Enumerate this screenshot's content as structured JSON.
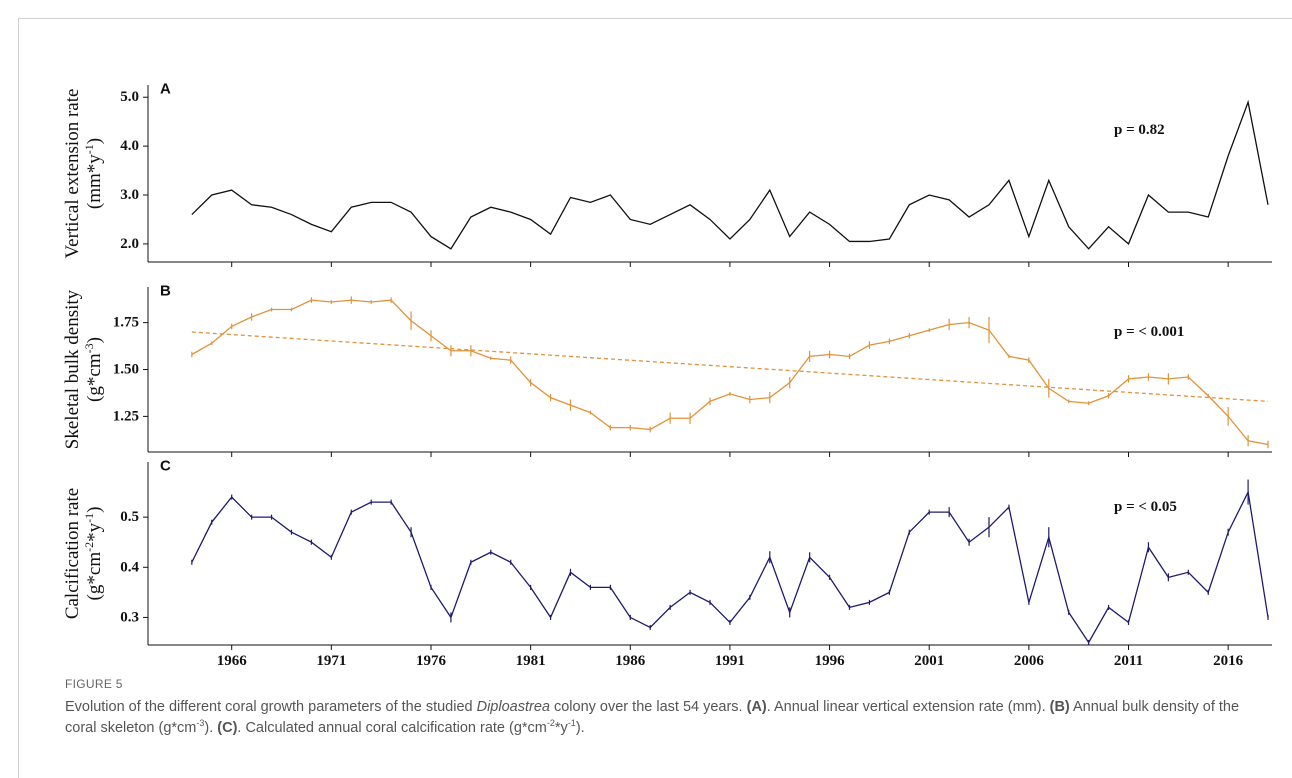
{
  "figure": {
    "label": "FIGURE 5",
    "caption": [
      {
        "text": "Evolution of the different coral growth parameters of the studied "
      },
      {
        "text": "Diploastrea",
        "style": "italic"
      },
      {
        "text": " colony over the last 54 years. "
      },
      {
        "text": "(A)",
        "style": "bold"
      },
      {
        "text": ". Annual linear vertical extension rate (mm). "
      },
      {
        "text": "(B)",
        "style": "bold"
      },
      {
        "text": " Annual bulk density of the coral skeleton (g*cm"
      },
      {
        "text": "-3",
        "style": "sup"
      },
      {
        "text": "). "
      },
      {
        "text": "(C)",
        "style": "bold"
      },
      {
        "text": ". Calculated annual coral calcification rate (g*cm"
      },
      {
        "text": "-2",
        "style": "sup"
      },
      {
        "text": "*y"
      },
      {
        "text": "-1",
        "style": "sup"
      },
      {
        "text": ")."
      }
    ]
  },
  "chart_data": [
    {
      "type": "line",
      "panel": "A",
      "annotation": "p = 0.82",
      "color": "#111111",
      "ylabel": "Vertical extension rate",
      "ylabel_unit": [
        {
          "text": "(mm*y"
        },
        {
          "text": "-1",
          "style": "sup"
        },
        {
          "text": ")"
        }
      ],
      "x": [
        1964,
        1965,
        1966,
        1967,
        1968,
        1969,
        1970,
        1971,
        1972,
        1973,
        1974,
        1975,
        1976,
        1977,
        1978,
        1979,
        1980,
        1981,
        1982,
        1983,
        1984,
        1985,
        1986,
        1987,
        1988,
        1989,
        1990,
        1991,
        1992,
        1993,
        1994,
        1995,
        1996,
        1997,
        1998,
        1999,
        2000,
        2001,
        2002,
        2003,
        2004,
        2005,
        2006,
        2007,
        2008,
        2009,
        2010,
        2011,
        2012,
        2013,
        2014,
        2015,
        2016,
        2017,
        2018
      ],
      "values": [
        2.6,
        3.0,
        3.1,
        2.8,
        2.75,
        2.6,
        2.4,
        2.25,
        2.75,
        2.85,
        2.85,
        2.65,
        2.15,
        1.9,
        2.55,
        2.75,
        2.65,
        2.5,
        2.2,
        2.95,
        2.85,
        3.0,
        2.5,
        2.4,
        2.6,
        2.8,
        2.5,
        2.1,
        2.5,
        3.1,
        2.15,
        2.65,
        2.4,
        2.05,
        2.05,
        2.1,
        2.8,
        3.0,
        2.9,
        2.55,
        2.8,
        3.3,
        2.15,
        3.3,
        2.35,
        1.9,
        2.35,
        2.0,
        3.0,
        2.65,
        2.65,
        2.55,
        3.8,
        4.9,
        2.8
      ],
      "xlim": [
        1961.8,
        2018.2
      ],
      "xticks": [
        1966,
        1971,
        1976,
        1981,
        1986,
        1991,
        1996,
        2001,
        2006,
        2011,
        2016
      ],
      "show_xtick_labels": false,
      "ylim": [
        1.63,
        5.25
      ],
      "yticks": [
        {
          "value": 2,
          "label": "2.0"
        },
        {
          "value": 3,
          "label": "3.0"
        },
        {
          "value": 4,
          "label": "4.0"
        },
        {
          "value": 5,
          "label": "5.0"
        }
      ]
    },
    {
      "type": "line",
      "panel": "B",
      "annotation": "p = < 0.001",
      "color": "#e0933a",
      "ylabel": "Skeletal bulk density",
      "ylabel_unit": [
        {
          "text": "(g*cm"
        },
        {
          "text": "-3",
          "style": "sup"
        },
        {
          "text": ")"
        }
      ],
      "x": [
        1964,
        1965,
        1966,
        1967,
        1968,
        1969,
        1970,
        1971,
        1972,
        1973,
        1974,
        1975,
        1976,
        1977,
        1978,
        1979,
        1980,
        1981,
        1982,
        1983,
        1984,
        1985,
        1986,
        1987,
        1988,
        1989,
        1990,
        1991,
        1992,
        1993,
        1994,
        1995,
        1996,
        1997,
        1998,
        1999,
        2000,
        2001,
        2002,
        2003,
        2004,
        2005,
        2006,
        2007,
        2008,
        2009,
        2010,
        2011,
        2012,
        2013,
        2014,
        2015,
        2016,
        2017,
        2018
      ],
      "values": [
        1.58,
        1.64,
        1.73,
        1.78,
        1.82,
        1.82,
        1.87,
        1.86,
        1.87,
        1.86,
        1.87,
        1.76,
        1.68,
        1.6,
        1.6,
        1.56,
        1.55,
        1.43,
        1.35,
        1.31,
        1.27,
        1.19,
        1.19,
        1.18,
        1.24,
        1.24,
        1.33,
        1.37,
        1.34,
        1.35,
        1.43,
        1.57,
        1.58,
        1.57,
        1.63,
        1.65,
        1.68,
        1.71,
        1.74,
        1.75,
        1.71,
        1.57,
        1.55,
        1.4,
        1.33,
        1.32,
        1.36,
        1.45,
        1.46,
        1.45,
        1.46,
        1.36,
        1.25,
        1.12,
        1.1
      ],
      "errors": [
        0.015,
        0.01,
        0.015,
        0.02,
        0.01,
        0.01,
        0.015,
        0.01,
        0.02,
        0.01,
        0.015,
        0.05,
        0.03,
        0.03,
        0.03,
        0.01,
        0.02,
        0.02,
        0.02,
        0.03,
        0.01,
        0.015,
        0.015,
        0.015,
        0.03,
        0.03,
        0.02,
        0.01,
        0.02,
        0.03,
        0.03,
        0.03,
        0.02,
        0.015,
        0.02,
        0.015,
        0.015,
        0.01,
        0.03,
        0.03,
        0.07,
        0.01,
        0.015,
        0.05,
        0.01,
        0.01,
        0.015,
        0.02,
        0.02,
        0.03,
        0.015,
        0.01,
        0.05,
        0.03,
        0.02
      ],
      "trend": {
        "x": [
          1964,
          2018
        ],
        "values": [
          1.7,
          1.33
        ],
        "style": "dashed"
      },
      "xlim": [
        1961.8,
        2018.2
      ],
      "xticks": [
        1966,
        1971,
        1976,
        1981,
        1986,
        1991,
        1996,
        2001,
        2006,
        2011,
        2016
      ],
      "show_xtick_labels": false,
      "ylim": [
        1.06,
        1.94
      ],
      "yticks": [
        1.25,
        {
          "value": 1.5,
          "label": "1.50"
        },
        1.75
      ]
    },
    {
      "type": "line",
      "panel": "C",
      "annotation": "p = < 0.05",
      "color": "#1f1a6b",
      "ylabel": "Calcification rate",
      "ylabel_unit": [
        {
          "text": "(g*cm"
        },
        {
          "text": "-2",
          "style": "sup"
        },
        {
          "text": "*y"
        },
        {
          "text": "-1",
          "style": "sup"
        },
        {
          "text": ")"
        }
      ],
      "x": [
        1964,
        1965,
        1966,
        1967,
        1968,
        1969,
        1970,
        1971,
        1972,
        1973,
        1974,
        1975,
        1976,
        1977,
        1978,
        1979,
        1980,
        1981,
        1982,
        1983,
        1984,
        1985,
        1986,
        1987,
        1988,
        1989,
        1990,
        1991,
        1992,
        1993,
        1994,
        1995,
        1996,
        1997,
        1998,
        1999,
        2000,
        2001,
        2002,
        2003,
        2004,
        2005,
        2006,
        2007,
        2008,
        2009,
        2010,
        2011,
        2012,
        2013,
        2014,
        2015,
        2016,
        2017,
        2018
      ],
      "values": [
        0.41,
        0.49,
        0.54,
        0.5,
        0.5,
        0.47,
        0.45,
        0.42,
        0.51,
        0.53,
        0.53,
        0.47,
        0.36,
        0.3,
        0.41,
        0.43,
        0.41,
        0.36,
        0.3,
        0.39,
        0.36,
        0.36,
        0.3,
        0.28,
        0.32,
        0.35,
        0.33,
        0.29,
        0.34,
        0.42,
        0.31,
        0.42,
        0.38,
        0.32,
        0.33,
        0.35,
        0.47,
        0.51,
        0.51,
        0.45,
        0.48,
        0.52,
        0.33,
        0.46,
        0.31,
        0.25,
        0.32,
        0.29,
        0.44,
        0.38,
        0.39,
        0.35,
        0.47,
        0.55,
        0.3
      ],
      "errors": [
        0.005,
        0.005,
        0.005,
        0.005,
        0.005,
        0.005,
        0.005,
        0.005,
        0.005,
        0.005,
        0.005,
        0.01,
        0.005,
        0.01,
        0.005,
        0.005,
        0.005,
        0.005,
        0.005,
        0.007,
        0.005,
        0.005,
        0.005,
        0.005,
        0.005,
        0.005,
        0.005,
        0.005,
        0.005,
        0.012,
        0.01,
        0.01,
        0.005,
        0.005,
        0.005,
        0.005,
        0.005,
        0.005,
        0.01,
        0.007,
        0.02,
        0.005,
        0.005,
        0.02,
        0.005,
        0.005,
        0.005,
        0.005,
        0.01,
        0.008,
        0.005,
        0.005,
        0.007,
        0.025,
        0.005
      ],
      "xlim": [
        1961.8,
        2018.2
      ],
      "xticks": [
        1966,
        1971,
        1976,
        1981,
        1986,
        1991,
        1996,
        2001,
        2006,
        2011,
        2016
      ],
      "show_xtick_labels": true,
      "ylim": [
        0.245,
        0.61
      ],
      "yticks": [
        0.3,
        0.4,
        0.5
      ]
    }
  ]
}
